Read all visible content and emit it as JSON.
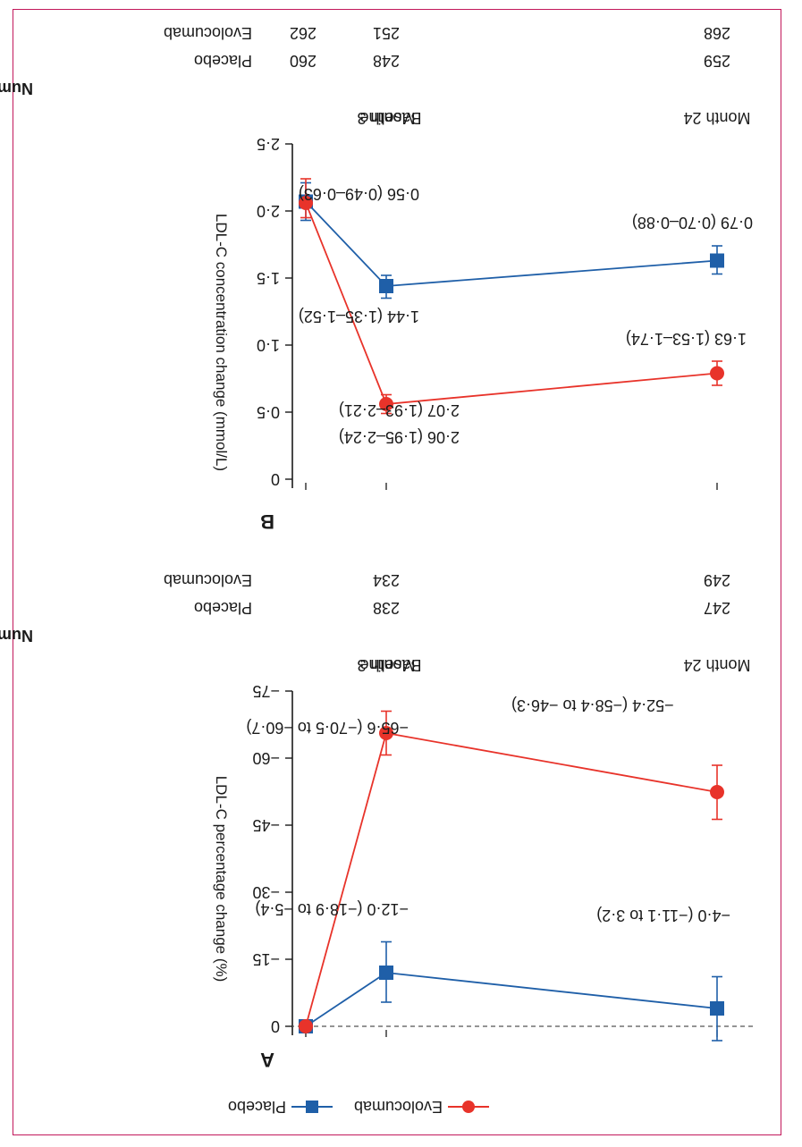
{
  "figure": {
    "orientation": "rotated-180",
    "panel_order": [
      "A",
      "B"
    ]
  },
  "legend": {
    "items": [
      {
        "label": "Placebo",
        "color": "#1f5fa8",
        "marker": "square"
      },
      {
        "label": "Evolocumab",
        "color": "#e8332a",
        "marker": "circle"
      }
    ]
  },
  "chart_data": [
    {
      "panel": "A",
      "type": "line",
      "ylabel": "LDL-C percentage change (%)",
      "ylim": [
        -75,
        0
      ],
      "yticks": [
        0,
        -15,
        -30,
        -45,
        -60,
        -75
      ],
      "x_labels": [
        "Baseline",
        "Month 3",
        "Month 24"
      ],
      "zero_line": "dashed",
      "number_header": "Number of participants",
      "numbers": [
        {
          "group": "Placebo",
          "values": [
            "238",
            "247"
          ]
        },
        {
          "group": "Evolocumab",
          "values": [
            "234",
            "249"
          ]
        }
      ],
      "series": [
        {
          "name": "Placebo",
          "color": "#1f5fa8",
          "marker": "square",
          "values": [
            0,
            -12.0,
            -4.0
          ],
          "ci_low": [
            0,
            -18.9,
            -11.1
          ],
          "ci_high": [
            0,
            -5.4,
            3.2
          ],
          "labels": [
            "",
            "−12·0 (−18·9 to −5·4)",
            "−4·0 (−11·1 to 3·2)"
          ]
        },
        {
          "name": "Evolocumab",
          "color": "#e8332a",
          "marker": "circle",
          "values": [
            0,
            -65.6,
            -52.4
          ],
          "ci_low": [
            0,
            -70.5,
            -58.4
          ],
          "ci_high": [
            0,
            -60.7,
            -46.3
          ],
          "labels": [
            "",
            "−65·6 (−70·5 to −60·7)",
            "−52·4 (−58·4 to −46·3)"
          ]
        }
      ]
    },
    {
      "panel": "B",
      "type": "line",
      "ylabel": "LDL-C concentration change (mmol/L)",
      "ylim": [
        0,
        2.5
      ],
      "yticks": [
        "0",
        "0·5",
        "1·0",
        "1·5",
        "2·0",
        "2·5"
      ],
      "ytick_values": [
        0,
        0.5,
        1.0,
        1.5,
        2.0,
        2.5
      ],
      "x_labels": [
        "Baseline",
        "Month 3",
        "Month 24"
      ],
      "number_header": "Number of participants",
      "numbers": [
        {
          "group": "Placebo",
          "values": [
            "260",
            "248",
            "259"
          ]
        },
        {
          "group": "Evolocumab",
          "values": [
            "262",
            "251",
            "268"
          ]
        }
      ],
      "series": [
        {
          "name": "Placebo",
          "color": "#1f5fa8",
          "marker": "square",
          "values": [
            2.07,
            1.44,
            1.63
          ],
          "ci_low": [
            1.93,
            1.35,
            1.53
          ],
          "ci_high": [
            2.21,
            1.52,
            1.74
          ],
          "labels": [
            "2·07 (1·93–2·21)",
            "1·44 (1·35–1·52)",
            "1·63 (1·53–1·74)"
          ]
        },
        {
          "name": "Evolocumab",
          "color": "#e8332a",
          "marker": "circle",
          "values": [
            2.06,
            0.56,
            0.79
          ],
          "ci_low": [
            1.95,
            0.49,
            0.7
          ],
          "ci_high": [
            2.24,
            0.63,
            0.88
          ],
          "labels": [
            "2·06 (1·95–2·24)",
            "0·56 (0·49–0·63)",
            "0·79 (0·70–0·88)"
          ]
        }
      ]
    }
  ]
}
